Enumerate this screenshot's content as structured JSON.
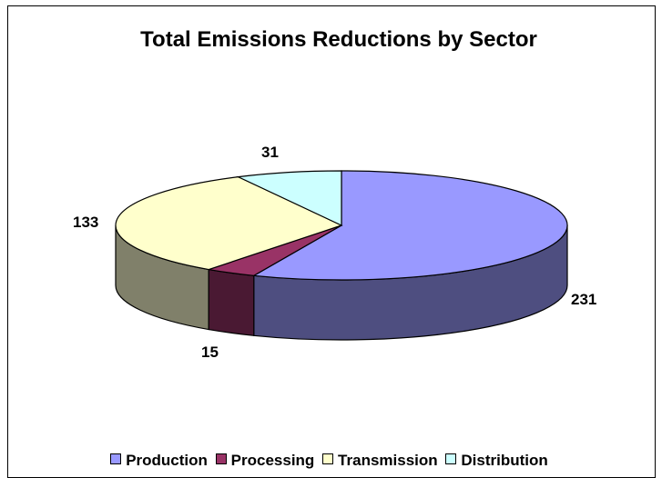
{
  "chart_data": {
    "type": "pie",
    "title": "Total Emissions Reductions by Sector",
    "categories": [
      "Production",
      "Processing",
      "Transmission",
      "Distribution"
    ],
    "values": [
      231,
      15,
      133,
      31
    ],
    "data_labels": [
      "231",
      "15",
      "133",
      "31"
    ],
    "colors": [
      "#9999ff",
      "#993366",
      "#ffffcc",
      "#ccffff"
    ],
    "side_colors": [
      "#4e4e80",
      "#4a1933",
      "#80806a",
      "#6a8080"
    ],
    "legend_placement": "bottom",
    "three_d": true
  }
}
